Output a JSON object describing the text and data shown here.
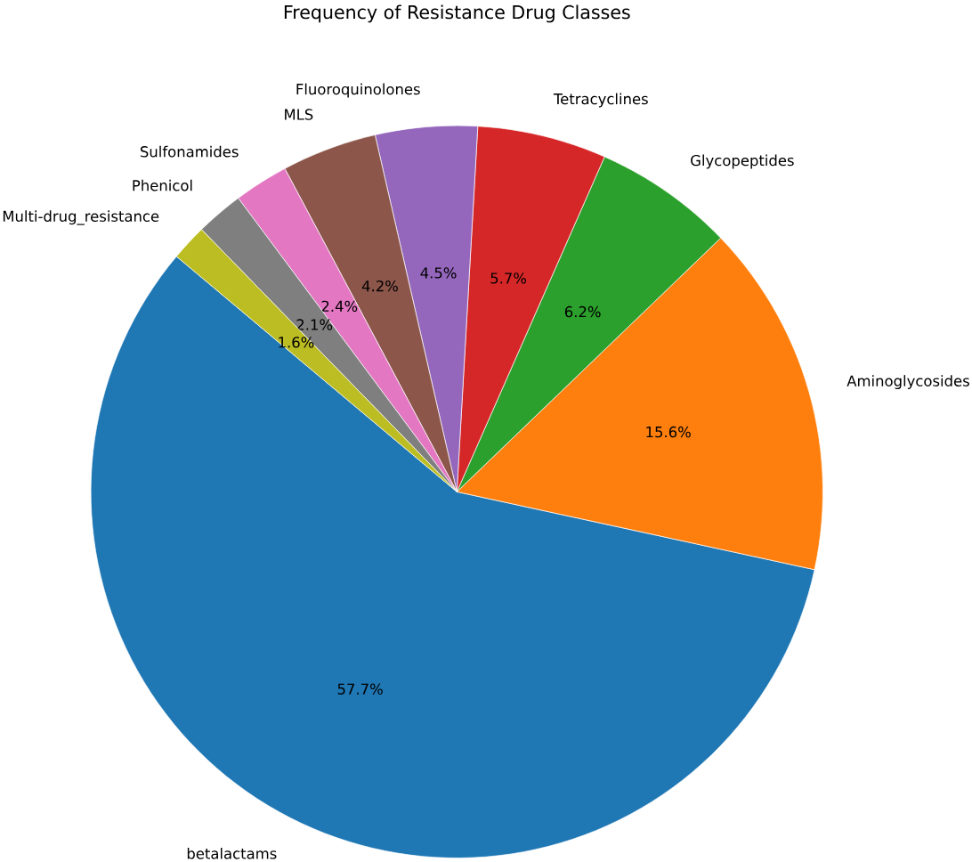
{
  "chart_data": {
    "type": "pie",
    "title": "Frequency of Resistance Drug Classes",
    "categories": [
      "betalactams",
      "Aminoglycosides",
      "Glycopeptides",
      "Tetracyclines",
      "Fluoroquinolones",
      "MLS",
      "Sulfonamides",
      "Phenicol",
      "Multi-drug_resistance"
    ],
    "values": [
      57.7,
      15.6,
      6.2,
      5.7,
      4.5,
      4.2,
      2.4,
      2.1,
      1.6
    ],
    "colors": [
      "#1f77b4",
      "#ff7f0e",
      "#2ca02c",
      "#d62728",
      "#9467bd",
      "#8c564b",
      "#e377c2",
      "#7f7f7f",
      "#bcbd22"
    ],
    "value_labels": [
      "57.7%",
      "15.6%",
      "6.2%",
      "5.7%",
      "4.5%",
      "4.2%",
      "2.4%",
      "2.1%",
      "1.6%"
    ]
  }
}
